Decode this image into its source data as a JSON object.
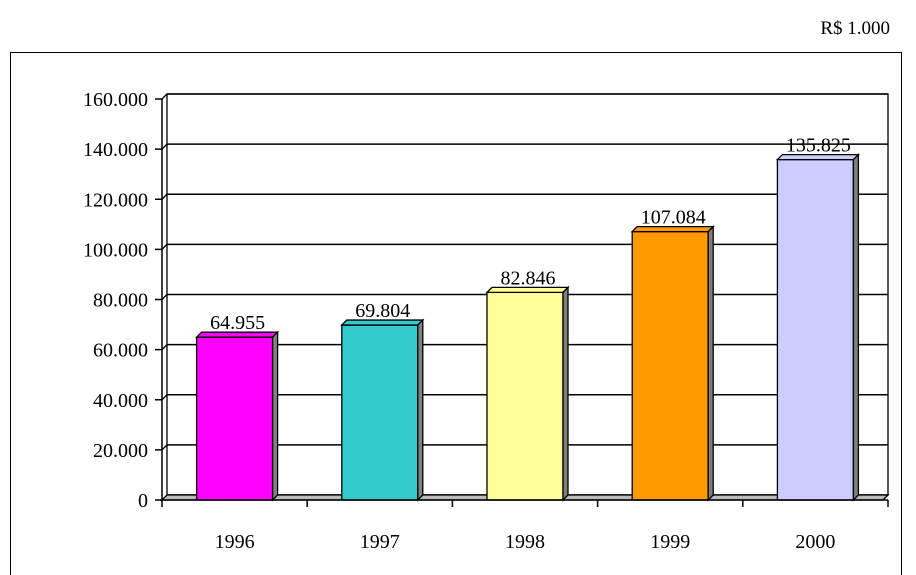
{
  "unit_label": "R$ 1.000",
  "chart_data": {
    "type": "bar",
    "categories": [
      "1996",
      "1997",
      "1998",
      "1999",
      "2000"
    ],
    "values": [
      64955,
      69804,
      82846,
      107084,
      135825
    ],
    "value_labels": [
      "64.955",
      "69.804",
      "82.846",
      "107.084",
      "135.825"
    ],
    "bar_colors": [
      "#ff00ff",
      "#33cccc",
      "#ffff99",
      "#ff9900",
      "#ccccff"
    ],
    "ylim": [
      0,
      160000
    ],
    "yticks": [
      0,
      20000,
      40000,
      60000,
      80000,
      100000,
      120000,
      140000,
      160000
    ],
    "ytick_labels": [
      "0",
      "20.000",
      "40.000",
      "60.000",
      "80.000",
      "100.000",
      "120.000",
      "140.000",
      "160.000"
    ],
    "grid": true,
    "legend": "none"
  }
}
